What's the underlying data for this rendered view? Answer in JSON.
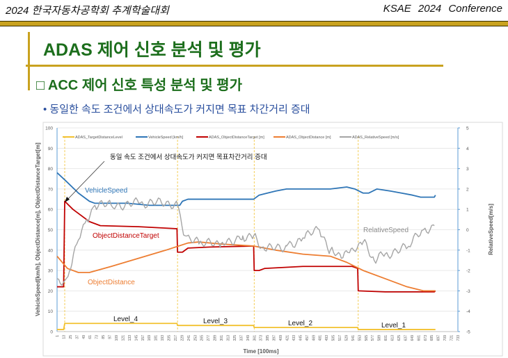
{
  "header": {
    "left": "2024 한국자동차공학회  추계학술대회",
    "right": "KSAE  2024  Conference"
  },
  "slide": {
    "title": "ADAS 제어 신호 분석 및 평가",
    "subtitle": "□ ACC 제어 신호 특성 분석 및 평가",
    "bullet": "• 동일한 속도 조건에서 상대속도가 커지면 목표 차간거리 증대"
  },
  "colors": {
    "level": "#f2c12e",
    "speed": "#2e75b6",
    "target": "#c00000",
    "distance": "#ed7d31",
    "relative": "#a5a5a5",
    "green": "#1c6e1c",
    "gold": "#c9a21f"
  },
  "chart_data": {
    "type": "line",
    "xlabel": "Time [100ms]",
    "ylabel": "VehicleSpeed[km/h], ObjectDistance[m], ObjectDistanceTarget[m]",
    "y2label": "RelativeSpeed[m/s]",
    "xlim": [
      1,
      733
    ],
    "ylim": [
      0,
      100
    ],
    "y2lim": [
      -5,
      5
    ],
    "yticks": [
      0,
      10,
      20,
      30,
      40,
      50,
      60,
      70,
      80,
      90,
      100
    ],
    "y2ticks": [
      -5,
      -4,
      -3,
      -2,
      -1,
      0,
      1,
      2,
      3,
      4,
      5
    ],
    "xtick_start": 1,
    "xtick_step": 12,
    "xtick_end": 733,
    "grid": true,
    "legend_position": "top",
    "level_changes": [
      15,
      221,
      361,
      551
    ],
    "series": [
      {
        "name": "ADAS_TargetDistanceLevel",
        "color": "#f2c12e",
        "axis": "left",
        "points": [
          [
            1,
            1
          ],
          [
            13,
            1
          ],
          [
            15,
            4
          ],
          [
            220,
            4
          ],
          [
            221,
            3
          ],
          [
            360,
            3
          ],
          [
            361,
            2
          ],
          [
            550,
            2
          ],
          [
            551,
            1
          ],
          [
            692,
            1
          ]
        ]
      },
      {
        "name": "VehicleSpeed [km/h]",
        "color": "#2e75b6",
        "axis": "left",
        "points": [
          [
            1,
            78
          ],
          [
            17,
            74
          ],
          [
            40,
            68
          ],
          [
            60,
            64
          ],
          [
            70,
            63
          ],
          [
            130,
            63
          ],
          [
            170,
            62
          ],
          [
            225,
            62
          ],
          [
            230,
            64
          ],
          [
            240,
            65
          ],
          [
            300,
            65
          ],
          [
            360,
            65
          ],
          [
            370,
            67
          ],
          [
            400,
            69
          ],
          [
            420,
            70
          ],
          [
            500,
            70
          ],
          [
            530,
            71
          ],
          [
            545,
            70
          ],
          [
            560,
            68
          ],
          [
            570,
            68
          ],
          [
            585,
            70
          ],
          [
            610,
            69
          ],
          [
            630,
            68
          ],
          [
            650,
            67
          ],
          [
            665,
            66
          ],
          [
            690,
            66
          ],
          [
            692,
            67
          ]
        ]
      },
      {
        "name": "ADAS_ObjectDistanceTarget [m]",
        "color": "#c00000",
        "axis": "left",
        "points": [
          [
            1,
            22
          ],
          [
            13,
            22
          ],
          [
            15,
            64
          ],
          [
            30,
            60
          ],
          [
            60,
            54
          ],
          [
            80,
            52
          ],
          [
            150,
            51.5
          ],
          [
            220,
            50.5
          ],
          [
            221,
            39
          ],
          [
            230,
            39
          ],
          [
            240,
            41
          ],
          [
            280,
            41.5
          ],
          [
            360,
            42
          ],
          [
            361,
            30
          ],
          [
            370,
            30
          ],
          [
            380,
            31
          ],
          [
            450,
            32
          ],
          [
            540,
            32
          ],
          [
            550,
            31
          ],
          [
            551,
            20
          ],
          [
            600,
            19.5
          ],
          [
            690,
            19.5
          ],
          [
            692,
            20
          ]
        ]
      },
      {
        "name": "ADAS_ObjectDistance [m]",
        "color": "#ed7d31",
        "axis": "left",
        "points": [
          [
            1,
            37
          ],
          [
            20,
            31
          ],
          [
            40,
            29
          ],
          [
            60,
            29
          ],
          [
            100,
            32
          ],
          [
            150,
            36
          ],
          [
            200,
            40
          ],
          [
            240,
            43.5
          ],
          [
            260,
            44
          ],
          [
            300,
            43
          ],
          [
            360,
            42
          ],
          [
            400,
            40
          ],
          [
            450,
            38
          ],
          [
            500,
            37
          ],
          [
            530,
            34
          ],
          [
            560,
            30
          ],
          [
            600,
            26
          ],
          [
            640,
            22
          ],
          [
            670,
            20
          ],
          [
            692,
            20
          ]
        ]
      },
      {
        "name": "ADAS_RelativeSpeed [m/s]",
        "color": "#a5a5a5",
        "axis": "right",
        "points": [
          [
            1,
            -2.4
          ],
          [
            15,
            -2.5
          ],
          [
            25,
            -2
          ],
          [
            40,
            -0.5
          ],
          [
            55,
            0.5
          ],
          [
            70,
            1.2
          ],
          [
            100,
            1.2
          ],
          [
            150,
            1.3
          ],
          [
            220,
            1.3
          ],
          [
            235,
            -0.3
          ],
          [
            260,
            -0.7
          ],
          [
            300,
            -0.7
          ],
          [
            340,
            -0.3
          ],
          [
            360,
            -0.3
          ],
          [
            380,
            -1.0
          ],
          [
            420,
            -0.8
          ],
          [
            450,
            -0.4
          ],
          [
            480,
            0
          ],
          [
            500,
            -1.0
          ],
          [
            520,
            -1.4
          ],
          [
            540,
            -0.9
          ],
          [
            560,
            -0.6
          ],
          [
            580,
            -1.5
          ],
          [
            600,
            -1.2
          ],
          [
            640,
            -0.9
          ],
          [
            670,
            0
          ],
          [
            690,
            0.2
          ]
        ]
      }
    ],
    "annotations": {
      "callout": "동일 속도 조건에서 상대속도가 커지면 목표차간거리 증대",
      "vehicle_speed": "VehicleSpeed",
      "object_distance_target": "ObjectDistanceTarget",
      "object_distance": "ObjectDistance",
      "relative_speed": "RelativeSpeed",
      "levels": [
        "Level_4",
        "Level_3",
        "Level_2",
        "Level_1"
      ]
    }
  }
}
